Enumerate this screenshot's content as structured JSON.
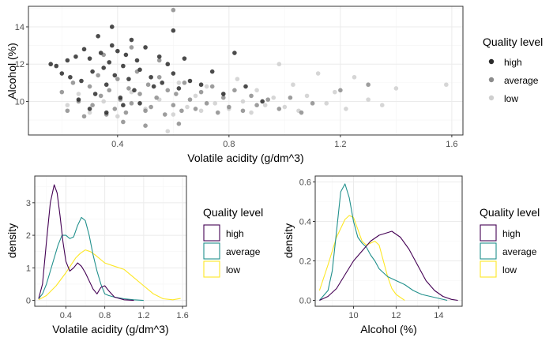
{
  "colors": {
    "panel_bg": "#ffffff",
    "grid_major": "#ebebeb",
    "grid_minor": "#f5f5f5",
    "panel_border": "#333333",
    "axis_text": "#4d4d4d",
    "title_text": "#000000",
    "high": "#2b2b2b",
    "average": "#8c8c8c",
    "low": "#cfcfcf",
    "density_high": "#440154",
    "density_average": "#21908c",
    "density_low": "#fde725"
  },
  "chart_data": [
    {
      "type": "scatter",
      "xlabel": "Volatile acidity (g/dm^3)",
      "ylabel": "Alcohol (%)",
      "xlim": [
        0.08,
        1.64
      ],
      "ylim": [
        8.2,
        15.1
      ],
      "x_ticks": [
        0.4,
        0.8,
        1.2,
        1.6
      ],
      "x_tick_labels": [
        "0.4",
        "0.8",
        "1.2",
        "1.6"
      ],
      "y_ticks": [
        10,
        12,
        14
      ],
      "y_tick_labels": [
        "10",
        "12",
        "14"
      ],
      "grid": true,
      "legend": {
        "title": "Quality level",
        "position": "right",
        "entries": [
          "high",
          "average",
          "low"
        ]
      },
      "series": [
        {
          "name": "high",
          "points": [
            [
              0.16,
              12.0
            ],
            [
              0.18,
              11.9
            ],
            [
              0.2,
              11.5
            ],
            [
              0.22,
              12.2
            ],
            [
              0.23,
              11.3
            ],
            [
              0.25,
              12.4
            ],
            [
              0.27,
              11.1
            ],
            [
              0.28,
              12.8
            ],
            [
              0.3,
              12.3
            ],
            [
              0.31,
              11.6
            ],
            [
              0.32,
              10.4
            ],
            [
              0.33,
              13.5
            ],
            [
              0.34,
              12.6
            ],
            [
              0.35,
              11.8
            ],
            [
              0.36,
              10.9
            ],
            [
              0.37,
              12.1
            ],
            [
              0.38,
              13.0
            ],
            [
              0.39,
              11.4
            ],
            [
              0.4,
              12.7
            ],
            [
              0.41,
              10.2
            ],
            [
              0.42,
              11.9
            ],
            [
              0.43,
              12.5
            ],
            [
              0.44,
              11.2
            ],
            [
              0.45,
              13.3
            ],
            [
              0.46,
              10.6
            ],
            [
              0.47,
              12.2
            ],
            [
              0.48,
              11.7
            ],
            [
              0.5,
              12.9
            ],
            [
              0.52,
              11.3
            ],
            [
              0.53,
              10.8
            ],
            [
              0.55,
              12.4
            ],
            [
              0.56,
              11.0
            ],
            [
              0.58,
              12.0
            ],
            [
              0.6,
              11.5
            ],
            [
              0.62,
              10.7
            ],
            [
              0.64,
              12.3
            ],
            [
              0.66,
              11.1
            ],
            [
              0.7,
              10.9
            ],
            [
              0.74,
              11.6
            ],
            [
              0.78,
              10.4
            ],
            [
              0.82,
              12.6
            ],
            [
              0.86,
              10.8
            ],
            [
              0.3,
              9.6
            ],
            [
              0.36,
              9.4
            ],
            [
              0.42,
              9.8
            ],
            [
              0.48,
              9.9
            ],
            [
              0.26,
              10.1
            ],
            [
              0.38,
              14.0
            ],
            [
              0.6,
              13.8
            ],
            [
              0.92,
              10.0
            ]
          ]
        },
        {
          "name": "average",
          "points": [
            [
              0.2,
              10.5
            ],
            [
              0.22,
              9.5
            ],
            [
              0.24,
              11.0
            ],
            [
              0.26,
              10.0
            ],
            [
              0.28,
              9.2
            ],
            [
              0.3,
              10.8
            ],
            [
              0.31,
              9.8
            ],
            [
              0.33,
              11.4
            ],
            [
              0.34,
              10.3
            ],
            [
              0.36,
              9.3
            ],
            [
              0.37,
              10.6
            ],
            [
              0.39,
              9.6
            ],
            [
              0.4,
              11.2
            ],
            [
              0.41,
              10.1
            ],
            [
              0.43,
              9.4
            ],
            [
              0.44,
              10.7
            ],
            [
              0.45,
              9.9
            ],
            [
              0.47,
              11.6
            ],
            [
              0.48,
              10.4
            ],
            [
              0.5,
              9.5
            ],
            [
              0.51,
              10.9
            ],
            [
              0.52,
              9.7
            ],
            [
              0.54,
              10.2
            ],
            [
              0.55,
              11.3
            ],
            [
              0.57,
              9.3
            ],
            [
              0.58,
              10.6
            ],
            [
              0.6,
              9.8
            ],
            [
              0.61,
              10.4
            ],
            [
              0.63,
              9.5
            ],
            [
              0.64,
              11.0
            ],
            [
              0.66,
              10.1
            ],
            [
              0.68,
              9.6
            ],
            [
              0.7,
              10.5
            ],
            [
              0.72,
              9.9
            ],
            [
              0.74,
              10.8
            ],
            [
              0.76,
              9.4
            ],
            [
              0.78,
              10.2
            ],
            [
              0.8,
              9.7
            ],
            [
              0.82,
              10.6
            ],
            [
              0.85,
              9.5
            ],
            [
              0.88,
              10.3
            ],
            [
              0.9,
              9.8
            ],
            [
              0.94,
              10.1
            ],
            [
              0.98,
              9.6
            ],
            [
              1.02,
              10.2
            ],
            [
              1.06,
              9.4
            ],
            [
              1.1,
              9.9
            ],
            [
              1.2,
              10.6
            ],
            [
              1.3,
              10.9
            ],
            [
              0.35,
              12.5
            ],
            [
              0.45,
              12.9
            ],
            [
              0.55,
              12.2
            ],
            [
              0.6,
              14.9
            ],
            [
              0.62,
              8.8
            ],
            [
              0.5,
              8.7
            ],
            [
              0.42,
              8.9
            ]
          ]
        },
        {
          "name": "low",
          "points": [
            [
              0.22,
              9.8
            ],
            [
              0.26,
              10.4
            ],
            [
              0.3,
              9.4
            ],
            [
              0.35,
              10.0
            ],
            [
              0.4,
              9.2
            ],
            [
              0.45,
              10.5
            ],
            [
              0.5,
              9.6
            ],
            [
              0.55,
              10.1
            ],
            [
              0.6,
              9.3
            ],
            [
              0.62,
              11.0
            ],
            [
              0.65,
              9.7
            ],
            [
              0.68,
              10.3
            ],
            [
              0.7,
              9.5
            ],
            [
              0.72,
              10.8
            ],
            [
              0.75,
              9.9
            ],
            [
              0.78,
              10.4
            ],
            [
              0.8,
              9.6
            ],
            [
              0.83,
              11.2
            ],
            [
              0.85,
              10.0
            ],
            [
              0.88,
              9.4
            ],
            [
              0.9,
              10.6
            ],
            [
              0.93,
              9.8
            ],
            [
              0.96,
              10.2
            ],
            [
              1.0,
              9.7
            ],
            [
              1.03,
              10.9
            ],
            [
              1.05,
              9.5
            ],
            [
              1.08,
              10.3
            ],
            [
              1.12,
              11.5
            ],
            [
              1.15,
              9.9
            ],
            [
              1.18,
              10.5
            ],
            [
              1.22,
              9.6
            ],
            [
              1.25,
              11.3
            ],
            [
              1.3,
              10.1
            ],
            [
              1.35,
              9.8
            ],
            [
              1.4,
              10.7
            ],
            [
              1.58,
              10.9
            ],
            [
              0.58,
              8.4
            ],
            [
              0.98,
              12.0
            ]
          ]
        }
      ]
    },
    {
      "type": "line",
      "xlabel": "Volatile acidity (g/dm^3)",
      "ylabel": "density",
      "xlim": [
        0.08,
        1.64
      ],
      "ylim": [
        -0.18,
        3.82
      ],
      "x_ticks": [
        0.4,
        0.8,
        1.2,
        1.6
      ],
      "x_tick_labels": [
        "0.4",
        "0.8",
        "1.2",
        "1.6"
      ],
      "y_ticks": [
        0,
        1,
        2,
        3
      ],
      "y_tick_labels": [
        "0",
        "1",
        "2",
        "3"
      ],
      "grid": true,
      "legend": {
        "title": "Quality level",
        "position": "right",
        "entries": [
          "high",
          "average",
          "low"
        ]
      },
      "series": [
        {
          "name": "high",
          "x": [
            0.12,
            0.16,
            0.2,
            0.24,
            0.28,
            0.31,
            0.34,
            0.37,
            0.4,
            0.44,
            0.48,
            0.52,
            0.56,
            0.6,
            0.64,
            0.68,
            0.72,
            0.76,
            0.8,
            0.84,
            0.9,
            1.0,
            1.1
          ],
          "y": [
            0.05,
            0.5,
            1.8,
            3.0,
            3.55,
            3.3,
            2.6,
            1.8,
            1.2,
            0.9,
            1.0,
            1.15,
            1.05,
            0.85,
            0.6,
            0.35,
            0.2,
            0.4,
            0.45,
            0.3,
            0.1,
            0.02,
            0.0
          ]
        },
        {
          "name": "average",
          "x": [
            0.12,
            0.16,
            0.2,
            0.24,
            0.28,
            0.32,
            0.36,
            0.4,
            0.44,
            0.48,
            0.52,
            0.56,
            0.6,
            0.64,
            0.68,
            0.72,
            0.76,
            0.8,
            0.84,
            0.9,
            1.0,
            1.1,
            1.2
          ],
          "y": [
            0.05,
            0.2,
            0.5,
            0.9,
            1.3,
            1.7,
            2.0,
            2.0,
            1.9,
            1.95,
            2.3,
            2.55,
            2.45,
            2.0,
            1.4,
            0.9,
            0.5,
            0.2,
            0.15,
            0.1,
            0.05,
            0.02,
            0.0
          ]
        },
        {
          "name": "low",
          "x": [
            0.12,
            0.2,
            0.3,
            0.4,
            0.5,
            0.55,
            0.6,
            0.65,
            0.7,
            0.8,
            0.9,
            1.0,
            1.1,
            1.2,
            1.3,
            1.4,
            1.5,
            1.58
          ],
          "y": [
            0.02,
            0.15,
            0.45,
            0.85,
            1.3,
            1.45,
            1.55,
            1.5,
            1.4,
            1.15,
            1.05,
            0.95,
            0.7,
            0.45,
            0.2,
            0.05,
            0.02,
            0.06
          ]
        }
      ]
    },
    {
      "type": "line",
      "xlabel": "Alcohol (%)",
      "ylabel": "density",
      "xlim": [
        8.2,
        15.1
      ],
      "ylim": [
        -0.03,
        0.63
      ],
      "x_ticks": [
        10,
        12,
        14
      ],
      "x_tick_labels": [
        "10",
        "12",
        "14"
      ],
      "y_ticks": [
        0.0,
        0.2,
        0.4,
        0.6
      ],
      "y_tick_labels": [
        "0.0",
        "0.2",
        "0.4",
        "0.6"
      ],
      "grid": true,
      "legend": {
        "title": "Quality level",
        "position": "right",
        "entries": [
          "high",
          "average",
          "low"
        ]
      },
      "series": [
        {
          "name": "high",
          "x": [
            8.4,
            8.8,
            9.2,
            9.6,
            10.0,
            10.4,
            10.8,
            11.2,
            11.5,
            11.8,
            12.2,
            12.6,
            13.0,
            13.4,
            13.8,
            14.2,
            14.6,
            14.9
          ],
          "y": [
            0.0,
            0.02,
            0.06,
            0.13,
            0.2,
            0.25,
            0.3,
            0.33,
            0.34,
            0.35,
            0.32,
            0.26,
            0.18,
            0.1,
            0.05,
            0.02,
            0.005,
            0.0
          ]
        },
        {
          "name": "average",
          "x": [
            8.4,
            8.8,
            9.0,
            9.2,
            9.4,
            9.6,
            9.8,
            10.0,
            10.2,
            10.4,
            10.6,
            10.8,
            11.0,
            11.2,
            11.6,
            12.0,
            12.4,
            12.8,
            13.2,
            13.6,
            14.0,
            14.4
          ],
          "y": [
            0.0,
            0.05,
            0.15,
            0.35,
            0.55,
            0.59,
            0.52,
            0.4,
            0.32,
            0.29,
            0.27,
            0.23,
            0.2,
            0.16,
            0.12,
            0.1,
            0.08,
            0.05,
            0.03,
            0.02,
            0.01,
            0.0
          ]
        },
        {
          "name": "low",
          "x": [
            8.4,
            8.8,
            9.2,
            9.6,
            9.8,
            10.0,
            10.2,
            10.4,
            10.6,
            10.8,
            11.0,
            11.2,
            11.4,
            11.6,
            11.8,
            12.0,
            12.4
          ],
          "y": [
            0.05,
            0.18,
            0.32,
            0.41,
            0.43,
            0.42,
            0.36,
            0.3,
            0.28,
            0.29,
            0.3,
            0.28,
            0.2,
            0.12,
            0.06,
            0.03,
            0.0
          ]
        }
      ]
    }
  ]
}
